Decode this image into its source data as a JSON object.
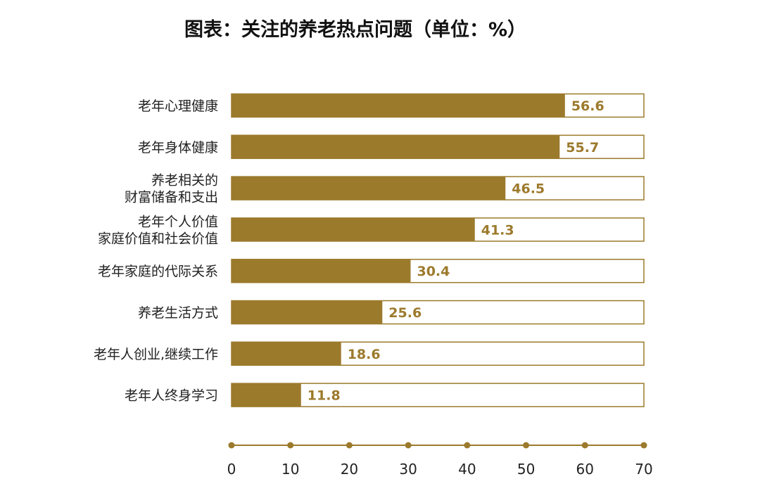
{
  "chart_data": {
    "type": "bar",
    "orientation": "horizontal",
    "title": "图表：关注的养老热点问题（单位：%）",
    "categories": [
      [
        "老年心理健康"
      ],
      [
        "老年身体健康"
      ],
      [
        "养老相关的",
        "财富储备和支出"
      ],
      [
        "老年个人价值",
        "家庭价值和社会价值"
      ],
      [
        "老年家庭的代际关系"
      ],
      [
        "养老生活方式"
      ],
      [
        "老年人创业,继续工作"
      ],
      [
        "老年人终身学习"
      ]
    ],
    "values": [
      56.6,
      55.7,
      46.5,
      41.3,
      30.4,
      25.6,
      18.6,
      11.8
    ],
    "value_labels": [
      "56.6",
      "55.7",
      "46.5",
      "41.3",
      "30.4",
      "25.6",
      "18.6",
      "11.8"
    ],
    "xlim": [
      0,
      70
    ],
    "xticks": [
      0,
      10,
      20,
      30,
      40,
      50,
      60,
      70
    ],
    "xtick_labels": [
      "0",
      "10",
      "20",
      "30",
      "40",
      "50",
      "60",
      "70"
    ],
    "grid": false,
    "legend": "none",
    "colors": {
      "bar": "#9C7A2C",
      "bar_outline": "#9C7A2C",
      "track_fill": "#ffffff",
      "value_text": "#9C7A2C",
      "axis": "#9C7A2C",
      "axis_dot": "#9C7A2C"
    }
  }
}
